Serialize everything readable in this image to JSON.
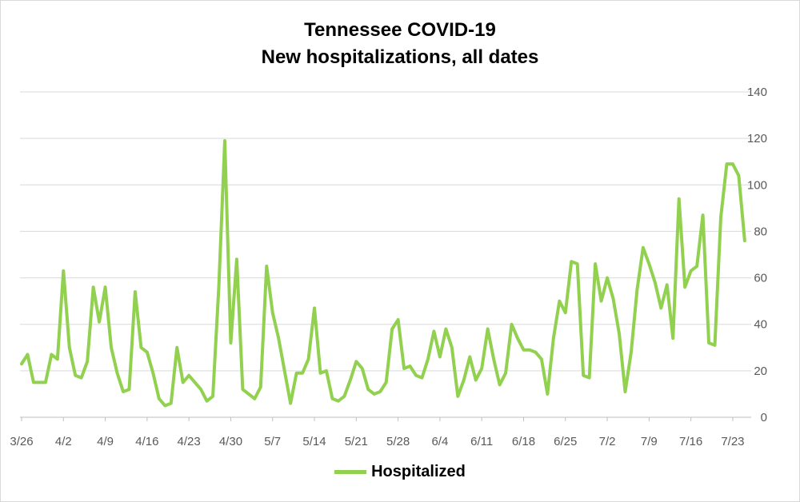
{
  "chart_data": {
    "type": "line",
    "title_line1": "Tennessee COVID-19",
    "title_line2": "New hospitalizations, all dates",
    "xlabel": "",
    "ylabel": "",
    "ylim": [
      0,
      140
    ],
    "y_ticks": [
      0,
      20,
      40,
      60,
      80,
      100,
      120,
      140
    ],
    "y_axis_position": "right",
    "grid": "horizontal",
    "legend_position": "bottom",
    "start_date": "3/26",
    "x_tick_labels": [
      "3/26",
      "4/2",
      "4/9",
      "4/16",
      "4/23",
      "4/30",
      "5/7",
      "5/14",
      "5/21",
      "5/28",
      "6/4",
      "6/11",
      "6/18",
      "6/25",
      "7/2",
      "7/9",
      "7/16",
      "7/23"
    ],
    "series": [
      {
        "name": "Hospitalized",
        "color": "#92D050",
        "values": [
          23,
          27,
          15,
          15,
          15,
          27,
          25,
          63,
          30,
          18,
          17,
          24,
          56,
          41,
          56,
          30,
          19,
          11,
          12,
          54,
          30,
          28,
          19,
          8,
          5,
          6,
          30,
          15,
          18,
          15,
          12,
          7,
          9,
          56,
          119,
          32,
          68,
          12,
          10,
          8,
          13,
          65,
          45,
          34,
          20,
          6,
          19,
          19,
          25,
          47,
          19,
          20,
          8,
          7,
          9,
          16,
          24,
          21,
          12,
          10,
          11,
          15,
          38,
          42,
          21,
          22,
          18,
          17,
          25,
          37,
          26,
          38,
          30,
          9,
          16,
          26,
          16,
          21,
          38,
          25,
          14,
          19,
          40,
          34,
          29,
          29,
          28,
          25,
          10,
          34,
          50,
          45,
          67,
          66,
          18,
          17,
          66,
          50,
          60,
          51,
          36,
          11,
          28,
          55,
          73,
          66,
          58,
          47,
          57,
          34,
          94,
          56,
          63,
          65,
          87,
          32,
          31,
          86,
          109,
          109,
          104,
          76
        ]
      }
    ]
  }
}
